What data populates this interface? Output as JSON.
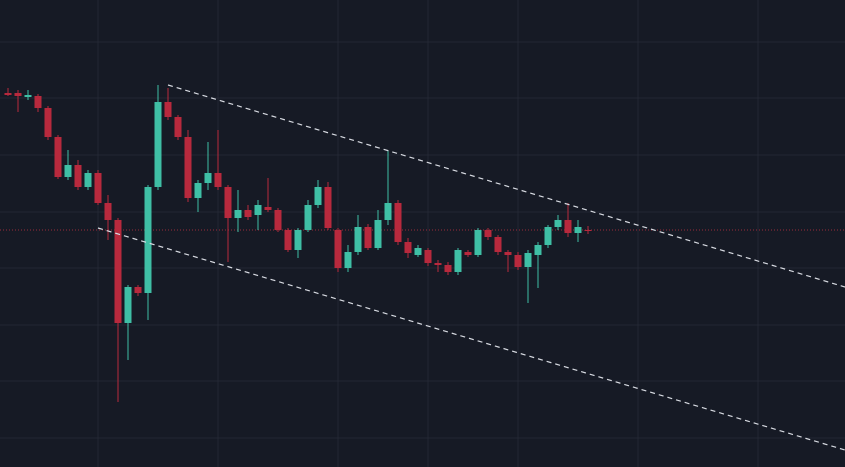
{
  "chart_data": {
    "type": "candlestick",
    "up_color": "#3fbfa5",
    "down_color": "#b8293d",
    "ylim": [
      0,
      467
    ],
    "open": [
      374,
      374,
      370,
      371,
      359,
      330,
      290,
      302,
      280,
      294,
      264,
      247,
      144,
      180,
      174,
      280,
      365,
      350,
      330,
      269,
      284,
      294,
      280,
      249,
      257,
      252,
      260,
      257,
      237,
      217,
      237,
      262,
      280,
      237,
      199,
      215,
      240,
      219,
      247,
      264,
      225,
      212,
      217,
      204,
      202,
      195,
      215,
      212,
      237,
      230,
      215,
      212,
      200,
      212,
      222,
      240,
      247,
      234,
      237
    ],
    "high": [
      379,
      377,
      377,
      373,
      361,
      332,
      317,
      307,
      297,
      297,
      272,
      249,
      182,
      182,
      282,
      382,
      379,
      352,
      337,
      287,
      325,
      337,
      282,
      277,
      262,
      267,
      289,
      259,
      239,
      239,
      267,
      287,
      285,
      239,
      222,
      252,
      243,
      257,
      317,
      267,
      229,
      222,
      219,
      207,
      205,
      219,
      217,
      239,
      239,
      232,
      217,
      215,
      217,
      225,
      242,
      252,
      264,
      247,
      241
    ],
    "low": [
      371,
      355,
      367,
      355,
      327,
      288,
      287,
      277,
      277,
      262,
      227,
      65,
      107,
      171,
      147,
      277,
      347,
      327,
      265,
      255,
      277,
      277,
      205,
      235,
      247,
      237,
      255,
      235,
      215,
      209,
      235,
      259,
      237,
      195,
      195,
      212,
      217,
      217,
      242,
      222,
      209,
      210,
      201,
      195,
      192,
      192,
      210,
      210,
      227,
      212,
      195,
      197,
      164,
      179,
      219,
      237,
      230,
      225,
      233
    ],
    "close": [
      372,
      371,
      372,
      359,
      330,
      290,
      302,
      280,
      294,
      264,
      247,
      144,
      180,
      174,
      280,
      365,
      350,
      330,
      269,
      284,
      294,
      280,
      249,
      257,
      250,
      262,
      257,
      237,
      217,
      237,
      262,
      280,
      239,
      199,
      215,
      240,
      219,
      247,
      264,
      225,
      214,
      219,
      204,
      202,
      195,
      217,
      212,
      237,
      230,
      215,
      212,
      200,
      214,
      222,
      240,
      247,
      234,
      240,
      236
    ]
  }
}
